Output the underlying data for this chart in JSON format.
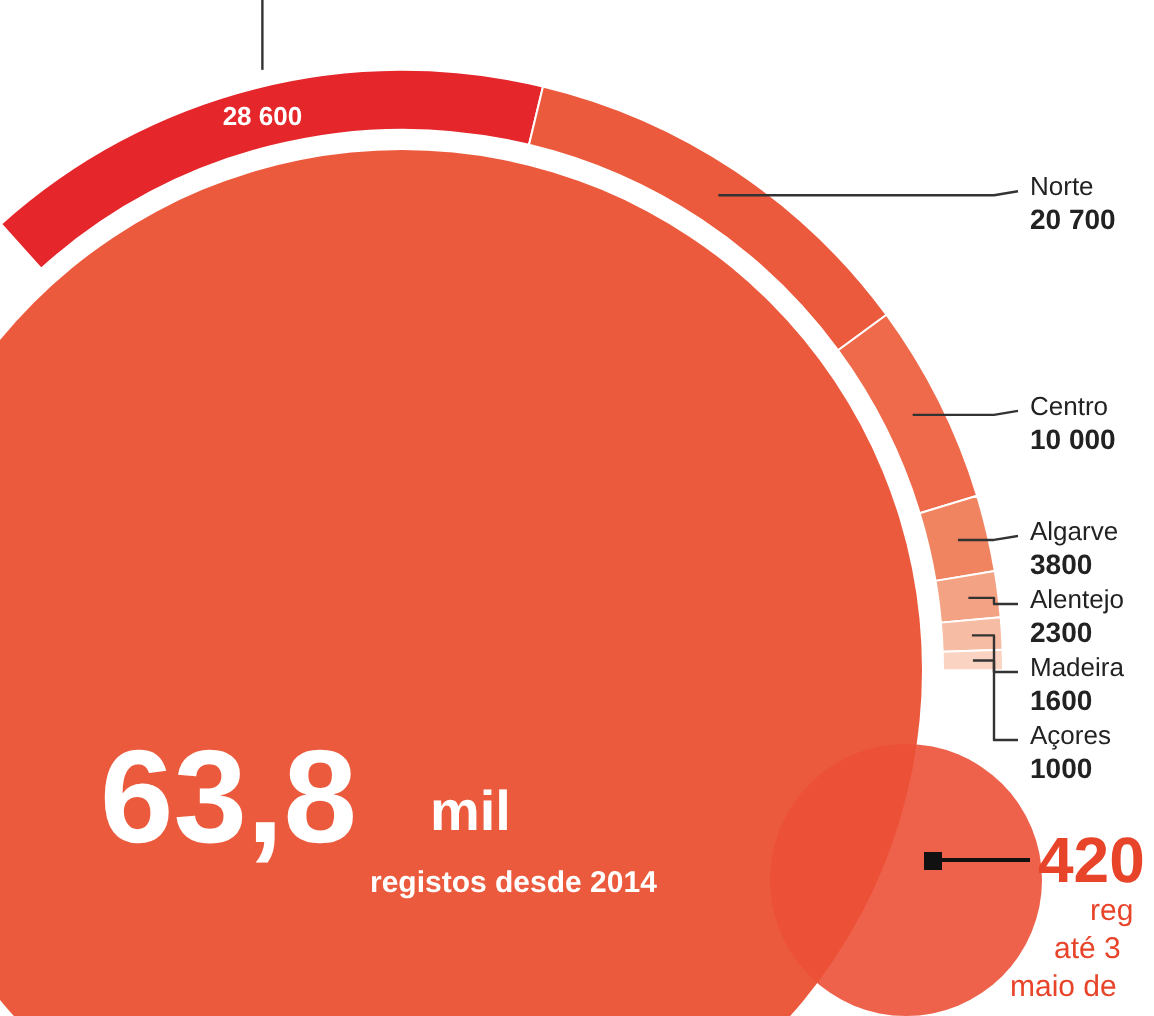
{
  "chart_data": {
    "type": "donut",
    "categories": [
      null,
      "Norte",
      "Centro",
      "Algarve",
      "Alentejo",
      "Madeira",
      "Açores"
    ],
    "values": [
      28600,
      20700,
      10000,
      3800,
      2300,
      1600,
      1000
    ],
    "value_labels": [
      "28 600",
      "20 700",
      "10 000",
      "3800",
      "2300",
      "1600",
      "1000"
    ],
    "colors": [
      "#e5262b",
      "#ec5a3d",
      "#ee6a4a",
      "#f08460",
      "#f4a284",
      "#f7bca4",
      "#fad3c2"
    ],
    "annotations": [
      "63,8",
      "mil",
      "registos desde 2014",
      "420",
      "reg",
      "até 3",
      "maio de"
    ],
    "legend": false
  }
}
